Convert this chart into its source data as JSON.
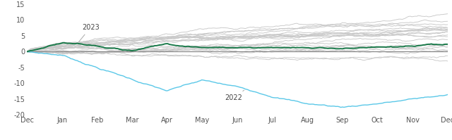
{
  "x_labels": [
    "Dec",
    "Jan",
    "Feb",
    "Mar",
    "Apr",
    "May",
    "Jun",
    "Jul",
    "Aug",
    "Sep",
    "Oct",
    "Nov",
    "Dec"
  ],
  "ylim": [
    -20,
    15
  ],
  "yticks": [
    -20,
    -15,
    -10,
    -5,
    0,
    5,
    10,
    15
  ],
  "n_points": 261,
  "n_gray_lines": 22,
  "green_color": "#1a7a4a",
  "cyan_color": "#5bc8e8",
  "gray_color": "#c8c8c8",
  "zero_line_color": "#888888",
  "background_color": "#ffffff",
  "label_2023": "2023",
  "label_2022": "2022",
  "annotation_color": "#aaaaaa",
  "text_color": "#555555"
}
